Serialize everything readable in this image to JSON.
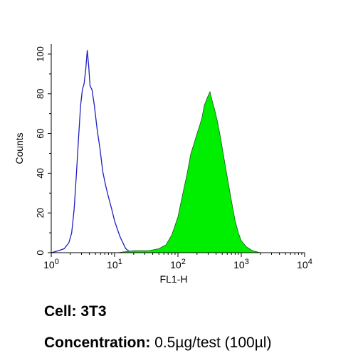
{
  "chart_data": {
    "type": "histogram",
    "xlabel": "FL1-H",
    "ylabel": "Counts",
    "x_scale": "log",
    "xlim": [
      1,
      10000
    ],
    "ylim": [
      0,
      105
    ],
    "y_ticks": [
      0,
      20,
      40,
      60,
      80,
      100
    ],
    "x_tick_labels": [
      {
        "base": "10",
        "exp": "0"
      },
      {
        "base": "10",
        "exp": "1"
      },
      {
        "base": "10",
        "exp": "2"
      },
      {
        "base": "10",
        "exp": "3"
      },
      {
        "base": "10",
        "exp": "4"
      }
    ],
    "series": [
      {
        "style": "outline",
        "color": "#1f1fbf",
        "points": [
          [
            1.0,
            0
          ],
          [
            1.3,
            1
          ],
          [
            1.6,
            2
          ],
          [
            1.9,
            5
          ],
          [
            2.1,
            10
          ],
          [
            2.3,
            22
          ],
          [
            2.5,
            40
          ],
          [
            2.7,
            58
          ],
          [
            2.9,
            74
          ],
          [
            3.1,
            82
          ],
          [
            3.3,
            85
          ],
          [
            3.5,
            92
          ],
          [
            3.7,
            102
          ],
          [
            3.9,
            94
          ],
          [
            4.1,
            84
          ],
          [
            4.4,
            82
          ],
          [
            4.8,
            74
          ],
          [
            5.3,
            62
          ],
          [
            5.9,
            52
          ],
          [
            6.5,
            41
          ],
          [
            7.2,
            34
          ],
          [
            8.0,
            28
          ],
          [
            9.0,
            22
          ],
          [
            10.0,
            16
          ],
          [
            11.0,
            12
          ],
          [
            12.2,
            8
          ],
          [
            13.5,
            5
          ],
          [
            15.0,
            2
          ],
          [
            16.5,
            1
          ],
          [
            18.0,
            0
          ]
        ]
      },
      {
        "style": "filled",
        "color": "#00ee00",
        "points": [
          [
            11,
            0
          ],
          [
            20,
            1
          ],
          [
            35,
            1
          ],
          [
            50,
            2
          ],
          [
            65,
            4
          ],
          [
            80,
            9
          ],
          [
            100,
            18
          ],
          [
            120,
            30
          ],
          [
            140,
            40
          ],
          [
            160,
            50
          ],
          [
            180,
            55
          ],
          [
            200,
            60
          ],
          [
            220,
            64
          ],
          [
            240,
            68
          ],
          [
            260,
            74
          ],
          [
            290,
            78
          ],
          [
            320,
            81
          ],
          [
            350,
            76
          ],
          [
            380,
            72
          ],
          [
            420,
            66
          ],
          [
            470,
            58
          ],
          [
            530,
            48
          ],
          [
            600,
            38
          ],
          [
            700,
            26
          ],
          [
            800,
            16
          ],
          [
            900,
            10
          ],
          [
            1000,
            6
          ],
          [
            1200,
            3
          ],
          [
            1500,
            1
          ],
          [
            2000,
            0
          ]
        ]
      }
    ]
  },
  "captions": {
    "cell_label": "Cell:",
    "cell_value": "3T3",
    "concentration_label": "Concentration:",
    "concentration_value": "0.5µg/test (100µl)"
  }
}
